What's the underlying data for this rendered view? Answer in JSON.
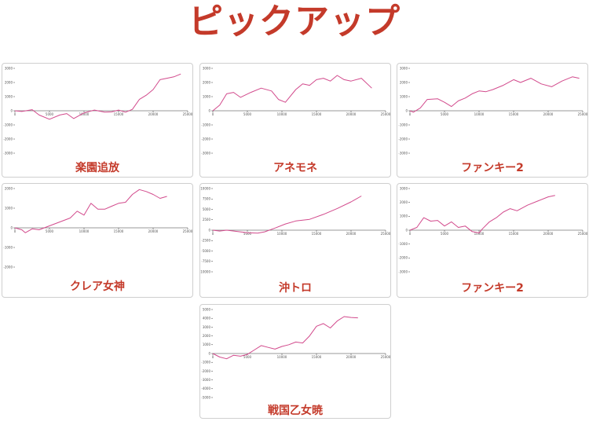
{
  "page": {
    "title": "ピックアップ"
  },
  "colors": {
    "line": "#d24a8c",
    "title": "#c43a2a",
    "axis": "#333333",
    "card_border": "#cfcfcf"
  },
  "chart_data": [
    {
      "type": "line",
      "title": "楽園追放",
      "xlim": [
        0,
        25000
      ],
      "ylim": [
        -3000,
        3000
      ],
      "xticks": [
        0,
        5000,
        10000,
        15000,
        20000,
        25000
      ],
      "xtick_labels": [
        "0",
        "5000",
        "10000",
        "15000",
        "20000",
        "25000"
      ],
      "yticks": [
        3000,
        2000,
        1000,
        0,
        -1000,
        -2000,
        -3000
      ],
      "ytick_labels": [
        "3000",
        "2000",
        "1000",
        "0",
        "-1000",
        "-2000",
        "-3000"
      ],
      "series": [
        {
          "x": [
            0,
            1000,
            2500,
            3500,
            5000,
            6500,
            7500,
            8500,
            10000,
            11500,
            13000,
            14000,
            15000,
            16000,
            17000,
            18000,
            19000,
            20000,
            21000,
            22000,
            23000,
            24000
          ],
          "y": [
            0,
            -50,
            80,
            -300,
            -600,
            -300,
            -200,
            -550,
            -150,
            50,
            -100,
            -80,
            50,
            -100,
            100,
            800,
            1100,
            1500,
            2200,
            2300,
            2400,
            2600
          ]
        }
      ]
    },
    {
      "type": "line",
      "title": "アネモネ",
      "xlim": [
        0,
        25000
      ],
      "ylim": [
        -3000,
        3000
      ],
      "xticks": [
        0,
        5000,
        10000,
        15000,
        20000,
        25000
      ],
      "xtick_labels": [
        "0",
        "5000",
        "10000",
        "15000",
        "20000",
        "25000"
      ],
      "yticks": [
        3000,
        2000,
        1000,
        0,
        -1000,
        -2000,
        -3000
      ],
      "ytick_labels": [
        "3000",
        "2000",
        "1000",
        "0",
        "-1000",
        "-2000",
        "-3000"
      ],
      "series": [
        {
          "x": [
            0,
            1000,
            2000,
            3000,
            4000,
            5500,
            7000,
            8500,
            9500,
            10500,
            12000,
            13000,
            14000,
            15000,
            16000,
            17000,
            18000,
            19000,
            20000,
            21500,
            23000
          ],
          "y": [
            0,
            400,
            1200,
            1300,
            950,
            1300,
            1600,
            1400,
            800,
            600,
            1500,
            1900,
            1800,
            2200,
            2300,
            2100,
            2500,
            2200,
            2100,
            2300,
            1600
          ]
        }
      ]
    },
    {
      "type": "line",
      "title": "ファンキー2",
      "xlim": [
        0,
        25000
      ],
      "ylim": [
        -3000,
        3000
      ],
      "xticks": [
        0,
        5000,
        10000,
        15000,
        20000,
        25000
      ],
      "xtick_labels": [
        "0",
        "5000",
        "10000",
        "15000",
        "20000",
        "25000"
      ],
      "yticks": [
        3000,
        2000,
        1000,
        0,
        -1000,
        -2000,
        -3000
      ],
      "ytick_labels": [
        "3000",
        "2000",
        "1000",
        "0",
        "-1000",
        "-2000",
        "-3000"
      ],
      "series": [
        {
          "x": [
            0,
            500,
            1500,
            2500,
            4000,
            5000,
            6000,
            7000,
            8000,
            9000,
            10000,
            11000,
            12000,
            13500,
            15000,
            16000,
            17500,
            19000,
            20500,
            22000,
            23500,
            24500
          ],
          "y": [
            0,
            -100,
            200,
            800,
            850,
            600,
            300,
            700,
            900,
            1200,
            1400,
            1350,
            1500,
            1800,
            2200,
            2000,
            2300,
            1900,
            1700,
            2100,
            2400,
            2300
          ]
        }
      ]
    },
    {
      "type": "line",
      "title": "クレア女神",
      "xlim": [
        0,
        25000
      ],
      "ylim": [
        -2000,
        2000
      ],
      "xticks": [
        0,
        5000,
        10000,
        15000,
        20000,
        25000
      ],
      "xtick_labels": [
        "0",
        "5000",
        "10000",
        "15000",
        "20000",
        "25000"
      ],
      "yticks": [
        2000,
        1000,
        0,
        -1000,
        -2000
      ],
      "ytick_labels": [
        "2000",
        "1000",
        "0",
        "-1000",
        "-2000"
      ],
      "series": [
        {
          "x": [
            0,
            1000,
            1500,
            2500,
            3500,
            5000,
            6500,
            8000,
            9000,
            10000,
            11000,
            12000,
            13000,
            14000,
            15000,
            16000,
            17000,
            18000,
            19000,
            20000,
            21000,
            22000
          ],
          "y": [
            0,
            -100,
            -250,
            -50,
            -100,
            100,
            300,
            500,
            850,
            650,
            1250,
            950,
            950,
            1100,
            1250,
            1300,
            1700,
            1950,
            1850,
            1700,
            1500,
            1600
          ]
        }
      ]
    },
    {
      "type": "line",
      "title": "沖トロ",
      "xlim": [
        0,
        25000
      ],
      "ylim": [
        -10000,
        10000
      ],
      "xticks": [
        0,
        5000,
        10000,
        15000,
        20000,
        25000
      ],
      "xtick_labels": [
        "0",
        "5000",
        "10000",
        "15000",
        "20000",
        "25000"
      ],
      "yticks": [
        10000,
        7500,
        5000,
        2500,
        0,
        -2500,
        -5000,
        -7500,
        -10000
      ],
      "ytick_labels": [
        "10000",
        "7500",
        "5000",
        "2500",
        "0",
        "-2500",
        "-5000",
        "-7500",
        "-10000"
      ],
      "series": [
        {
          "x": [
            0,
            1000,
            2000,
            3500,
            5000,
            6500,
            7500,
            9000,
            10500,
            12000,
            14000,
            16000,
            18000,
            20000,
            21500
          ],
          "y": [
            0,
            -200,
            0,
            -300,
            -600,
            -700,
            -400,
            500,
            1500,
            2200,
            2600,
            3800,
            5200,
            6800,
            8200
          ]
        }
      ]
    },
    {
      "type": "line",
      "title": "ファンキー2",
      "xlim": [
        0,
        25000
      ],
      "ylim": [
        -3000,
        3000
      ],
      "xticks": [
        0,
        5000,
        10000,
        15000,
        20000,
        25000
      ],
      "xtick_labels": [
        "0",
        "5000",
        "10000",
        "15000",
        "20000",
        "25000"
      ],
      "yticks": [
        3000,
        2000,
        1000,
        0,
        -1000,
        -2000,
        -3000
      ],
      "ytick_labels": [
        "3000",
        "2000",
        "1000",
        "0",
        "-1000",
        "-2000",
        "-3000"
      ],
      "series": [
        {
          "x": [
            0,
            1000,
            2000,
            3000,
            4000,
            5000,
            6000,
            7000,
            8000,
            9000,
            10000,
            10500,
            11500,
            12500,
            13500,
            14500,
            15500,
            17000,
            18500,
            20000,
            21000
          ],
          "y": [
            0,
            200,
            900,
            650,
            700,
            300,
            600,
            200,
            300,
            -100,
            -200,
            100,
            600,
            900,
            1300,
            1550,
            1400,
            1800,
            2100,
            2400,
            2500
          ]
        }
      ]
    },
    {
      "type": "line",
      "title": "戦国乙女暁",
      "xlim": [
        0,
        25000
      ],
      "ylim": [
        -5000,
        5000
      ],
      "xticks": [
        0,
        5000,
        10000,
        15000,
        20000,
        25000
      ],
      "xtick_labels": [
        "0",
        "5000",
        "10000",
        "15000",
        "20000",
        "25000"
      ],
      "yticks": [
        5000,
        4000,
        3000,
        2000,
        1000,
        0,
        -1000,
        -2000,
        -3000,
        -4000,
        -5000
      ],
      "ytick_labels": [
        "5000",
        "4000",
        "3000",
        "2000",
        "1000",
        "0",
        "-1000",
        "-2000",
        "-3000",
        "-4000",
        "-5000"
      ],
      "series": [
        {
          "x": [
            0,
            1000,
            2000,
            3000,
            4000,
            5000,
            6000,
            7000,
            8000,
            9000,
            10000,
            11000,
            12000,
            13000,
            14000,
            15000,
            16000,
            17000,
            18000,
            19000,
            20000,
            21000
          ],
          "y": [
            0,
            -400,
            -600,
            -200,
            -300,
            -100,
            400,
            900,
            700,
            500,
            800,
            1000,
            1300,
            1200,
            2000,
            3100,
            3400,
            2900,
            3700,
            4200,
            4100,
            4050
          ]
        }
      ]
    }
  ]
}
